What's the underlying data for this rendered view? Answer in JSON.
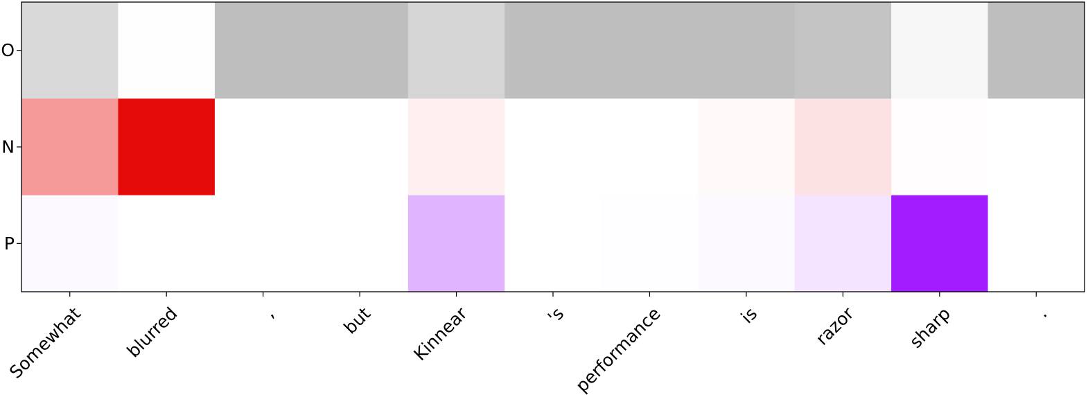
{
  "chart_data": {
    "type": "heatmap",
    "title": "",
    "xlabel": "",
    "ylabel": "",
    "x_categories": [
      "Somewhat",
      "blurred",
      ",",
      "but",
      "Kinnear",
      "'s",
      "performance",
      "is",
      "razor",
      "sharp",
      "."
    ],
    "y_categories": [
      "O",
      "N",
      "P"
    ],
    "values": [
      [
        0.58,
        0.02,
        1.0,
        1.0,
        0.65,
        1.0,
        1.0,
        1.0,
        0.93,
        0.13,
        1.0
      ],
      [
        0.42,
        1.0,
        0.0,
        0.0,
        0.06,
        0.0,
        0.0,
        0.02,
        0.12,
        0.01,
        0.0
      ],
      [
        0.02,
        0.0,
        0.0,
        0.0,
        0.33,
        0.0,
        0.01,
        0.02,
        0.12,
        1.0,
        0.0
      ]
    ],
    "row_colors": {
      "O": "#bebebe",
      "N": "#e60b0b",
      "P": "#a21cff"
    },
    "grid": false,
    "colorbar": false
  }
}
